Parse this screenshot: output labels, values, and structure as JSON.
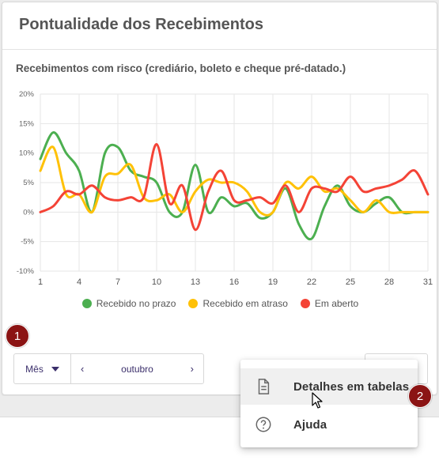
{
  "card": {
    "title": "Pontualidade dos Recebimentos",
    "subtitle": "Recebimentos com risco (crediário, boleto e cheque pré-datado.)"
  },
  "chart_data": {
    "type": "line",
    "x": [
      1,
      2,
      3,
      4,
      5,
      6,
      7,
      8,
      9,
      10,
      11,
      12,
      13,
      14,
      15,
      16,
      17,
      18,
      19,
      20,
      21,
      22,
      23,
      24,
      25,
      26,
      27,
      28,
      29,
      30,
      31
    ],
    "xticks": [
      1,
      4,
      7,
      10,
      13,
      16,
      19,
      22,
      25,
      28,
      31
    ],
    "yticks": [
      -10,
      -5,
      0,
      5,
      10,
      15,
      20
    ],
    "ytick_labels": [
      "-10%",
      "-5%",
      "0%",
      "5%",
      "10%",
      "15%",
      "20%"
    ],
    "ylim": [
      -10,
      20
    ],
    "xlim": [
      1,
      31
    ],
    "grid": true,
    "legend_position": "bottom",
    "series": [
      {
        "name": "Recebido no prazo",
        "color": "#4caf50",
        "values": [
          9,
          13.5,
          10,
          7,
          0,
          10,
          11,
          7,
          6,
          5,
          0,
          0,
          8,
          0,
          2.5,
          1,
          1.5,
          -1,
          0,
          4,
          -2,
          -4.5,
          1,
          4.5,
          1,
          0,
          1.5,
          2.5,
          0,
          0,
          0
        ]
      },
      {
        "name": "Recebido em atraso",
        "color": "#ffc107",
        "values": [
          7,
          11,
          3,
          3,
          0,
          6,
          6.5,
          8,
          2.5,
          2,
          3,
          0,
          3.5,
          5.5,
          5,
          5,
          3.5,
          0,
          0,
          5,
          4,
          6,
          3.5,
          4,
          2,
          0,
          2,
          0,
          0,
          0,
          0
        ]
      },
      {
        "name": "Em aberto",
        "color": "#f44336",
        "values": [
          0,
          1,
          3.5,
          3,
          4.5,
          2.5,
          2,
          2.5,
          2.5,
          11.5,
          1.5,
          4.5,
          -3,
          3.5,
          7,
          2,
          2,
          2.5,
          1.5,
          4.5,
          0,
          4,
          4,
          3.5,
          6,
          3.5,
          4,
          4.5,
          5.5,
          7,
          3
        ]
      }
    ]
  },
  "controls": {
    "period_select": "Mês",
    "period_value": "outubro",
    "prev_arrow": "‹",
    "next_arrow": "›"
  },
  "badges": {
    "one": "1",
    "two": "2"
  },
  "menu": {
    "items": [
      {
        "label": "Detalhes em tabelas",
        "icon": "document-icon"
      },
      {
        "label": "Ajuda",
        "icon": "help-circle-icon"
      }
    ]
  }
}
